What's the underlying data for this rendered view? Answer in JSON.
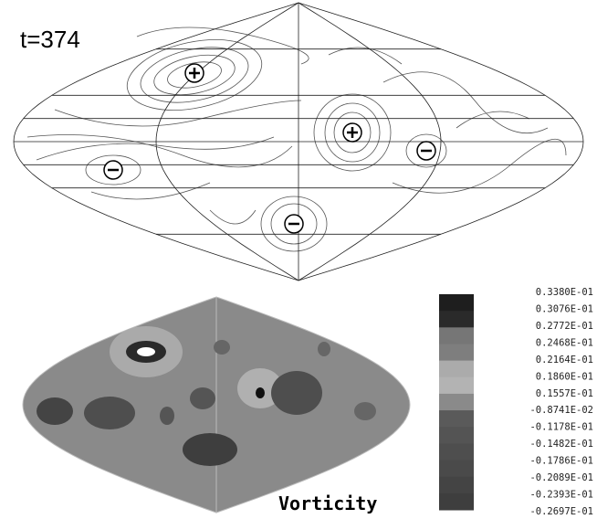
{
  "top_map": {
    "label": "t=374"
  },
  "bottom_map": {
    "title": "Vorticity"
  },
  "colorbar": {
    "labels": [
      "0.3380E-01",
      "0.3076E-01",
      "0.2772E-01",
      "0.2468E-01",
      "0.2164E-01",
      "0.1860E-01",
      "0.1557E-01",
      "-0.8741E-02",
      "-0.1178E-01",
      "-0.1482E-01",
      "-0.1786E-01",
      "-0.2089E-01",
      "-0.2393E-01",
      "-0.2697E-01"
    ],
    "colors": [
      "#1e1e1e",
      "#2a2a2a",
      "#767676",
      "#7e7e7e",
      "#ababab",
      "#b3b3b3",
      "#8a8a8a",
      "#5a5a5a",
      "#545454",
      "#4e4e4e",
      "#4a4a4a",
      "#444444",
      "#3e3e3e"
    ]
  }
}
